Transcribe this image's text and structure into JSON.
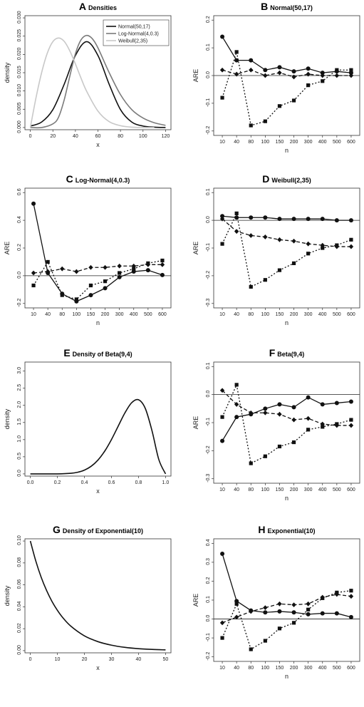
{
  "chart_data": [
    {
      "id": "A",
      "letter": "A",
      "title": "Densities",
      "type": "line",
      "xlabel": "x",
      "ylabel": "density",
      "xlim": [
        0,
        120
      ],
      "ylim": [
        0,
        0.03
      ],
      "xticks": [
        "0",
        "20",
        "40",
        "60",
        "80",
        "100",
        "120"
      ],
      "yticks": [
        "0.000",
        "0.005",
        "0.010",
        "0.015",
        "0.020",
        "0.025",
        "0.030"
      ],
      "legend": "top-right",
      "series": [
        {
          "name": "Normal(50,17)",
          "color": "#111111",
          "x": [
            0,
            10,
            20,
            30,
            40,
            50,
            60,
            70,
            80,
            90,
            100,
            110,
            120
          ],
          "y": [
            0.0004,
            0.0015,
            0.0049,
            0.0118,
            0.0197,
            0.0235,
            0.0197,
            0.0118,
            0.0049,
            0.0015,
            0.0004,
            0.0001,
            0.0
          ]
        },
        {
          "name": "Log-Normal(4,0.3)",
          "color": "#7a7a7a",
          "x": [
            0,
            10,
            20,
            25,
            30,
            35,
            40,
            45,
            50,
            55,
            60,
            70,
            80,
            90,
            100,
            110,
            120
          ],
          "y": [
            0.0,
            0.0,
            0.001,
            0.0028,
            0.0075,
            0.014,
            0.0202,
            0.024,
            0.0252,
            0.0243,
            0.0218,
            0.015,
            0.009,
            0.0049,
            0.0026,
            0.0013,
            0.0006
          ]
        },
        {
          "name": "Weibull(2,35)",
          "color": "#c8c8c8",
          "x": [
            0,
            5,
            10,
            15,
            20,
            25,
            30,
            35,
            40,
            45,
            50,
            60,
            70,
            80,
            90,
            100,
            110
          ],
          "y": [
            0.0,
            0.0081,
            0.015,
            0.0203,
            0.0235,
            0.0245,
            0.0236,
            0.021,
            0.0174,
            0.0135,
            0.0099,
            0.0045,
            0.0016,
            0.0005,
            0.0001,
            0.0,
            0.0
          ]
        }
      ]
    },
    {
      "id": "B",
      "letter": "B",
      "title": "Normal(50,17)",
      "type": "line",
      "xlabel": "n",
      "ylabel": "ARE",
      "ylim": [
        -0.2,
        0.2
      ],
      "categories": [
        "10",
        "40",
        "80",
        "100",
        "150",
        "200",
        "300",
        "400",
        "500",
        "600"
      ],
      "yticks": [
        "0.2",
        "0.1",
        "0.0",
        "-0.1",
        "-0.2"
      ],
      "series": [
        {
          "marker": "circle",
          "dash": "solid",
          "values": [
            0.14,
            0.055,
            0.055,
            0.02,
            0.03,
            0.015,
            0.025,
            0.01,
            0.015,
            0.01
          ]
        },
        {
          "marker": "diamond",
          "dash": "dashed",
          "values": [
            0.02,
            0.005,
            0.02,
            0.0,
            0.01,
            -0.005,
            0.005,
            0.0,
            0.0,
            0.0
          ]
        },
        {
          "marker": "square",
          "dash": "dotted",
          "values": [
            -0.08,
            0.085,
            -0.18,
            -0.165,
            -0.11,
            -0.09,
            -0.035,
            -0.02,
            0.02,
            0.02
          ]
        }
      ]
    },
    {
      "id": "C",
      "letter": "C",
      "title": "Log-Normal(4,0.3)",
      "type": "line",
      "xlabel": "n",
      "ylabel": "ARE",
      "ylim": [
        -0.2,
        0.6
      ],
      "categories": [
        "10",
        "40",
        "80",
        "100",
        "150",
        "200",
        "300",
        "400",
        "500",
        "600"
      ],
      "yticks": [
        "0.6",
        "0.4",
        "0.2",
        "0.0",
        "-0.2"
      ],
      "series": [
        {
          "marker": "circle",
          "dash": "solid",
          "values": [
            0.52,
            0.02,
            -0.13,
            -0.185,
            -0.14,
            -0.09,
            -0.01,
            0.03,
            0.04,
            0.005
          ]
        },
        {
          "marker": "diamond",
          "dash": "dashed",
          "values": [
            0.02,
            0.03,
            0.05,
            0.03,
            0.06,
            0.06,
            0.07,
            0.07,
            0.08,
            0.08
          ]
        },
        {
          "marker": "square",
          "dash": "dotted",
          "values": [
            -0.07,
            0.1,
            -0.14,
            -0.17,
            -0.07,
            -0.04,
            0.02,
            0.05,
            0.09,
            0.11
          ]
        }
      ]
    },
    {
      "id": "D",
      "letter": "D",
      "title": "Weibull(2,35)",
      "type": "line",
      "xlabel": "n",
      "ylabel": "ARE",
      "ylim": [
        -0.3,
        0.1
      ],
      "categories": [
        "10",
        "40",
        "80",
        "100",
        "150",
        "200",
        "300",
        "400",
        "500",
        "600"
      ],
      "yticks": [
        "0.1",
        "0.0",
        "-0.1",
        "-0.2",
        "-0.3"
      ],
      "series": [
        {
          "marker": "circle",
          "dash": "solid",
          "values": [
            0.015,
            0.01,
            0.01,
            0.01,
            0.005,
            0.005,
            0.005,
            0.005,
            0.0,
            0.0
          ]
        },
        {
          "marker": "diamond",
          "dash": "dashed",
          "values": [
            0.005,
            -0.04,
            -0.055,
            -0.06,
            -0.07,
            -0.075,
            -0.085,
            -0.09,
            -0.095,
            -0.095
          ]
        },
        {
          "marker": "square",
          "dash": "dotted",
          "values": [
            -0.085,
            0.025,
            -0.24,
            -0.215,
            -0.18,
            -0.155,
            -0.12,
            -0.1,
            -0.09,
            -0.07
          ]
        }
      ]
    },
    {
      "id": "E",
      "letter": "E",
      "title": "Density of Beta(9,4)",
      "type": "line",
      "xlabel": "x",
      "ylabel": "density",
      "xlim": [
        0,
        1
      ],
      "ylim": [
        0,
        3.2
      ],
      "xticks": [
        "0.0",
        "0.2",
        "0.4",
        "0.6",
        "0.8",
        "1.0"
      ],
      "yticks": [
        "0.0",
        "0.5",
        "1.0",
        "1.5",
        "2.0",
        "2.5",
        "3.0"
      ],
      "series": [
        {
          "color": "#111111",
          "x": [
            0,
            0.2,
            0.3,
            0.35,
            0.4,
            0.45,
            0.5,
            0.55,
            0.6,
            0.65,
            0.7,
            0.75,
            0.8,
            0.85,
            0.9,
            0.95,
            1.0
          ],
          "y": [
            0,
            0.0006,
            0.0174,
            0.048,
            0.111,
            0.223,
            0.403,
            0.664,
            1.003,
            1.395,
            1.784,
            2.08,
            2.164,
            1.912,
            1.256,
            0.421,
            0
          ]
        }
      ]
    },
    {
      "id": "F",
      "letter": "F",
      "title": "Beta(9,4)",
      "type": "line",
      "xlabel": "n",
      "ylabel": "ARE",
      "ylim": [
        -0.3,
        0.1
      ],
      "categories": [
        "10",
        "40",
        "80",
        "100",
        "150",
        "200",
        "300",
        "400",
        "500",
        "600"
      ],
      "yticks": [
        "0.1",
        "0.0",
        "-0.1",
        "-0.2",
        "-0.3"
      ],
      "series": [
        {
          "marker": "circle",
          "dash": "solid",
          "values": [
            -0.165,
            -0.08,
            -0.07,
            -0.05,
            -0.035,
            -0.045,
            -0.01,
            -0.035,
            -0.03,
            -0.025
          ]
        },
        {
          "marker": "diamond",
          "dash": "dashed",
          "values": [
            0.015,
            -0.035,
            -0.065,
            -0.065,
            -0.07,
            -0.09,
            -0.085,
            -0.105,
            -0.11,
            -0.11
          ]
        },
        {
          "marker": "square",
          "dash": "dotted",
          "values": [
            -0.08,
            0.035,
            -0.245,
            -0.22,
            -0.185,
            -0.17,
            -0.125,
            -0.115,
            -0.105,
            -0.09
          ]
        }
      ]
    },
    {
      "id": "G",
      "letter": "G",
      "title": "Density of Exponential(10)",
      "type": "line",
      "xlabel": "x",
      "ylabel": "density",
      "xlim": [
        0,
        50
      ],
      "ylim": [
        0,
        0.1
      ],
      "xticks": [
        "0",
        "10",
        "20",
        "30",
        "40",
        "50"
      ],
      "yticks": [
        "0.00",
        "0.02",
        "0.04",
        "0.06",
        "0.08",
        "0.10"
      ],
      "series": [
        {
          "color": "#111111",
          "x": [
            0,
            2,
            4,
            6,
            8,
            10,
            12,
            15,
            20,
            25,
            30,
            35,
            40,
            45,
            50
          ],
          "y": [
            0.1,
            0.0819,
            0.067,
            0.0549,
            0.0449,
            0.0368,
            0.0301,
            0.0223,
            0.0135,
            0.0082,
            0.005,
            0.003,
            0.0018,
            0.0011,
            0.0007
          ]
        }
      ]
    },
    {
      "id": "H",
      "letter": "H",
      "title": "Exponential(10)",
      "type": "line",
      "xlabel": "n",
      "ylabel": "ARE",
      "ylim": [
        -0.2,
        0.4
      ],
      "categories": [
        "10",
        "40",
        "80",
        "100",
        "150",
        "200",
        "300",
        "400",
        "500",
        "600"
      ],
      "yticks": [
        "0.4",
        "0.3",
        "0.2",
        "0.1",
        "0.0",
        "-0.1",
        "-0.2"
      ],
      "series": [
        {
          "marker": "circle",
          "dash": "solid",
          "values": [
            0.345,
            0.095,
            0.045,
            0.035,
            0.04,
            0.035,
            0.025,
            0.03,
            0.03,
            0.01
          ]
        },
        {
          "marker": "diamond",
          "dash": "dashed",
          "values": [
            -0.02,
            0.01,
            0.04,
            0.06,
            0.08,
            0.075,
            0.08,
            0.115,
            0.13,
            0.12
          ]
        },
        {
          "marker": "square",
          "dash": "dotted",
          "values": [
            -0.1,
            0.08,
            -0.16,
            -0.115,
            -0.05,
            -0.02,
            0.05,
            0.11,
            0.14,
            0.15
          ]
        }
      ]
    }
  ]
}
